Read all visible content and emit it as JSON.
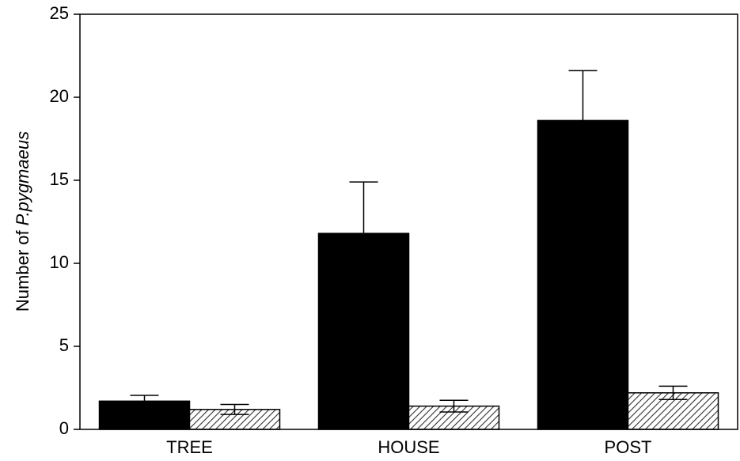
{
  "chart_data": {
    "type": "bar",
    "ylabel": [
      "Number of",
      "P.pygmaeus"
    ],
    "categories": [
      "TREE",
      "HOUSE",
      "POST"
    ],
    "series": [
      {
        "color": "#000000",
        "values": [
          1.7,
          11.8,
          18.6
        ],
        "errors": [
          0.35,
          3.1,
          3.0
        ],
        "error_direction": "up"
      },
      {
        "color": "hatch",
        "values": [
          1.2,
          1.4,
          2.2
        ],
        "errors": [
          0.3,
          0.35,
          0.4
        ],
        "error_direction": "both"
      }
    ],
    "ylim": [
      0,
      25
    ],
    "yticks": [
      0,
      5,
      10,
      15,
      20,
      25
    ]
  }
}
